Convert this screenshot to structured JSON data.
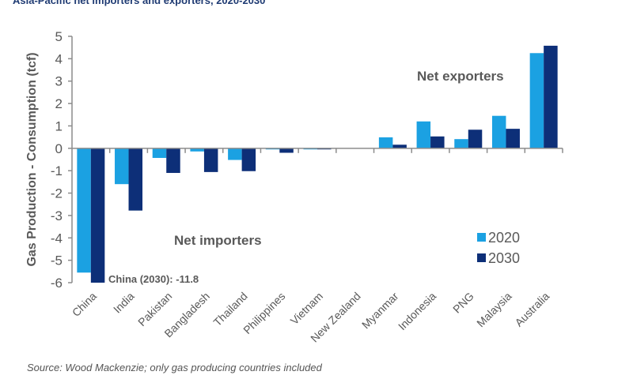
{
  "chart_data": {
    "type": "bar",
    "title": "Asia-Pacific net importers and exporters, 2020-2030",
    "xlabel": "",
    "ylabel": "Gas Production - Consumption (tcf)",
    "ylim": [
      -6,
      5
    ],
    "yticks": [
      5,
      4,
      3,
      2,
      1,
      0,
      -1,
      -2,
      -3,
      -4,
      -5,
      -6
    ],
    "grid": false,
    "categories": [
      "China",
      "India",
      "Pakistan",
      "Bangladesh",
      "Thailand",
      "Philippines",
      "Vietnam",
      "New Zealand",
      "Myanmar",
      "Indonesia",
      "PNG",
      "Malaysia",
      "Australia"
    ],
    "series": [
      {
        "name": "2020",
        "color": "#1ba1e2",
        "values": [
          -5.55,
          -1.6,
          -0.43,
          -0.14,
          -0.52,
          -0.05,
          -0.05,
          0.0,
          0.49,
          1.2,
          0.41,
          1.45,
          4.25
        ]
      },
      {
        "name": "2030",
        "color": "#0d2f78",
        "values": [
          -11.8,
          -2.78,
          -1.1,
          -1.06,
          -1.02,
          -0.2,
          -0.05,
          0.0,
          0.16,
          0.53,
          0.83,
          0.87,
          4.58
        ]
      }
    ],
    "legend": {
      "position": "bottom-right",
      "entries": [
        "2020",
        "2030"
      ]
    },
    "annotations": {
      "importers": "Net importers",
      "exporters": "Net exporters",
      "china_note": "China (2030):  -11.8"
    },
    "source": "Source: Wood Mackenzie; only gas producing  countries included"
  }
}
